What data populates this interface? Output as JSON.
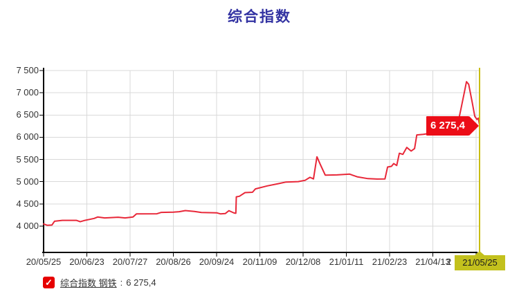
{
  "title": "综合指数",
  "colors": {
    "title_blue": "#3333a2",
    "line_red": "#e82738",
    "callout_red": "#ec0d17",
    "cursor_yellow_line": "#c9bd13",
    "cursor_yellow_box": "#c3c11d",
    "grid_line": "#d9d9d9",
    "axis_line": "#000000",
    "legend_check_red": "#e60000"
  },
  "chart_data": {
    "type": "line",
    "title": "综合指数",
    "xlabel": "",
    "ylabel": "",
    "grid": true,
    "ylim": [
      4000,
      7500
    ],
    "y_ticks": [
      7500,
      7000,
      6500,
      6000,
      5500,
      5000,
      4500,
      4000
    ],
    "y_tick_labels": [
      "7 500",
      "7 000",
      "6 500",
      "6 000",
      "5 500",
      "5 000",
      "4 500",
      "4 000"
    ],
    "x_tick_labels": [
      "20/05/25",
      "20/06/23",
      "20/07/27",
      "20/08/26",
      "20/09/24",
      "20/11/09",
      "20/12/08",
      "21/01/11",
      "21/02/23",
      "21/04/13"
    ],
    "x_partial_label": "2",
    "series": [
      {
        "name": "综合指数 钢铁",
        "color": "#e82738",
        "last_value": 6275.4,
        "last_value_label": "6 275,4",
        "points": [
          [
            0,
            4050
          ],
          [
            0.8,
            4020
          ],
          [
            1.9,
            4025
          ],
          [
            2.5,
            4110
          ],
          [
            4.3,
            4130
          ],
          [
            7.5,
            4130
          ],
          [
            8.4,
            4100
          ],
          [
            9.5,
            4130
          ],
          [
            11.6,
            4175
          ],
          [
            12.4,
            4205
          ],
          [
            14,
            4185
          ],
          [
            17.1,
            4200
          ],
          [
            18.7,
            4185
          ],
          [
            20.5,
            4205
          ],
          [
            21.3,
            4275
          ],
          [
            26,
            4278
          ],
          [
            27,
            4310
          ],
          [
            29.8,
            4315
          ],
          [
            31.1,
            4325
          ],
          [
            32.5,
            4350
          ],
          [
            34.6,
            4330
          ],
          [
            36.2,
            4308
          ],
          [
            39.7,
            4300
          ],
          [
            40.6,
            4275
          ],
          [
            41.7,
            4285
          ],
          [
            42.5,
            4348
          ],
          [
            43.7,
            4295
          ],
          [
            44.1,
            4290
          ],
          [
            44.2,
            4660
          ],
          [
            44.9,
            4672
          ],
          [
            46.2,
            4755
          ],
          [
            47.9,
            4762
          ],
          [
            48.6,
            4838
          ],
          [
            51.3,
            4905
          ],
          [
            54,
            4958
          ],
          [
            55.6,
            4992
          ],
          [
            58.4,
            5002
          ],
          [
            60,
            5032
          ],
          [
            61.1,
            5098
          ],
          [
            61.9,
            5062
          ],
          [
            62.7,
            5560
          ],
          [
            63.5,
            5380
          ],
          [
            64.6,
            5148
          ],
          [
            67.3,
            5152
          ],
          [
            70.2,
            5170
          ],
          [
            71.9,
            5110
          ],
          [
            74.4,
            5068
          ],
          [
            76.5,
            5060
          ],
          [
            78.3,
            5062
          ],
          [
            78.9,
            5330
          ],
          [
            79.8,
            5345
          ],
          [
            80.3,
            5408
          ],
          [
            81,
            5365
          ],
          [
            81.6,
            5640
          ],
          [
            82.4,
            5615
          ],
          [
            83.3,
            5770
          ],
          [
            84.3,
            5690
          ],
          [
            85.1,
            5745
          ],
          [
            85.6,
            6052
          ],
          [
            87.1,
            6065
          ],
          [
            88.4,
            6085
          ],
          [
            89.7,
            6060
          ],
          [
            91,
            6092
          ],
          [
            92.4,
            6080
          ],
          [
            94,
            6110
          ],
          [
            94.8,
            6200
          ],
          [
            95.7,
            6620
          ],
          [
            96.5,
            7000
          ],
          [
            97,
            7250
          ],
          [
            97.5,
            7190
          ],
          [
            98.3,
            6790
          ],
          [
            98.9,
            6470
          ],
          [
            99.4,
            6400
          ],
          [
            99.7,
            6430
          ],
          [
            100,
            6275.4
          ]
        ]
      }
    ]
  },
  "callout": {
    "value_label": "6 275,4"
  },
  "cursor": {
    "date_label": "21/05/25"
  },
  "legend": {
    "checkbox_checked": true,
    "check_glyph": "✓",
    "series_name": "综合指数 钢铁",
    "separator": ":",
    "value": "6 275,4"
  }
}
